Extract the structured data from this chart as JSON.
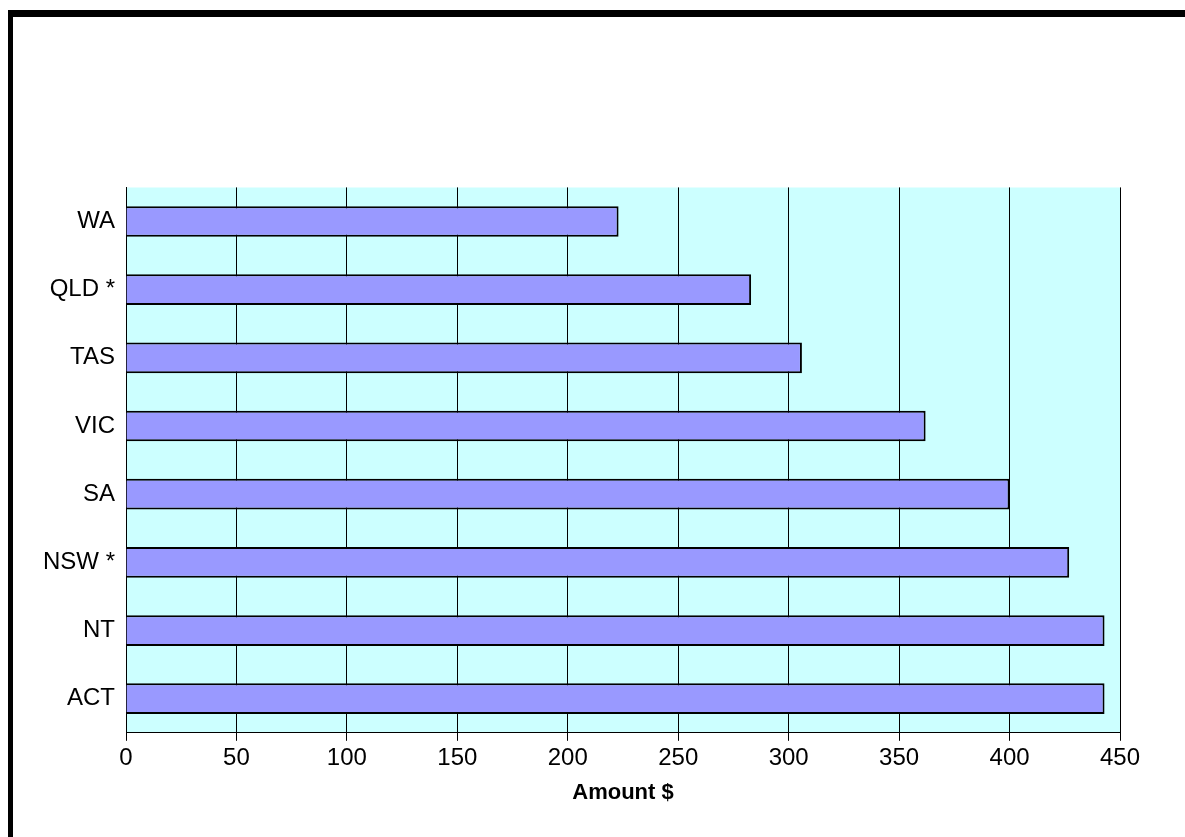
{
  "chart_data": {
    "type": "bar",
    "orientation": "horizontal",
    "xlabel": "Amount $",
    "categories": [
      "WA",
      "QLD *",
      "TAS",
      "VIC",
      "SA",
      "NSW *",
      "NT",
      "ACT"
    ],
    "values": [
      223,
      283,
      306,
      362,
      400,
      427,
      443,
      443
    ],
    "color": "#9999ff",
    "xlim": [
      0,
      450
    ],
    "xticks": [
      0,
      50,
      100,
      150,
      200,
      250,
      300,
      350,
      400,
      450
    ],
    "grid": "x",
    "legend": false
  }
}
